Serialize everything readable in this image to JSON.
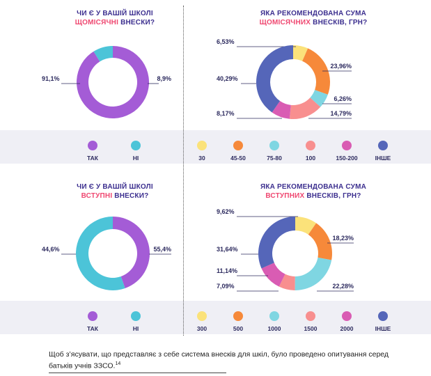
{
  "panels": {
    "monthly_exist": {
      "title_l1": "ЧИ Є У ВАШІЙ ШКОЛІ",
      "title_hl": "ЩОМІСЯЧНІ",
      "title_rest": " ВНЕСКИ?"
    },
    "monthly_amount": {
      "title_l1": "ЯКА РЕКОМЕНДОВАНА СУМА",
      "title_hl": "ЩОМІСЯЧНИХ",
      "title_rest": " ВНЕСКІВ, ГРН?"
    },
    "entry_exist": {
      "title_l1": "ЧИ Є У ВАШІЙ ШКОЛІ",
      "title_hl": "ВСТУПНІ",
      "title_rest": " ВНЕСКИ?"
    },
    "entry_amount": {
      "title_l1": "ЯКА РЕКОМЕНДОВАНА СУМА",
      "title_hl": "ВСТУПНИХ",
      "title_rest": " ВНЕСКІВ, ГРН?"
    }
  },
  "colors": {
    "purple": "#a45cd6",
    "cyan": "#4cc4d8",
    "yellow": "#fbe27a",
    "orange": "#f6893a",
    "light_cyan": "#7fd6e2",
    "pink": "#f88f8f",
    "magenta": "#d95cb3",
    "blue": "#5566b9"
  },
  "chart_data": [
    {
      "type": "pie",
      "id": "monthly_exist",
      "slices": [
        {
          "label": "ТАК",
          "value": 91.1,
          "text": "91,1%",
          "color": "#a45cd6"
        },
        {
          "label": "НІ",
          "value": 8.9,
          "text": "8,9%",
          "color": "#4cc4d8"
        }
      ]
    },
    {
      "type": "pie",
      "id": "monthly_amount",
      "slices": [
        {
          "label": "30",
          "value": 6.53,
          "text": "6,53%",
          "color": "#fbe27a"
        },
        {
          "label": "45-50",
          "value": 23.96,
          "text": "23,96%",
          "color": "#f6893a"
        },
        {
          "label": "75-80",
          "value": 6.26,
          "text": "6,26%",
          "color": "#7fd6e2"
        },
        {
          "label": "100",
          "value": 14.79,
          "text": "14,79%",
          "color": "#f88f8f"
        },
        {
          "label": "150-200",
          "value": 8.17,
          "text": "8,17%",
          "color": "#d95cb3"
        },
        {
          "label": "ІНШЕ",
          "value": 40.29,
          "text": "40,29%",
          "color": "#5566b9"
        }
      ]
    },
    {
      "type": "pie",
      "id": "entry_exist",
      "slices": [
        {
          "label": "ТАК",
          "value": 44.6,
          "text": "44,6%",
          "color": "#a45cd6"
        },
        {
          "label": "НІ",
          "value": 55.4,
          "text": "55,4%",
          "color": "#4cc4d8"
        }
      ]
    },
    {
      "type": "pie",
      "id": "entry_amount",
      "slices": [
        {
          "label": "300",
          "value": 9.62,
          "text": "9,62%",
          "color": "#fbe27a"
        },
        {
          "label": "500",
          "value": 18.23,
          "text": "18,23%",
          "color": "#f6893a"
        },
        {
          "label": "1000",
          "value": 22.28,
          "text": "22,28%",
          "color": "#7fd6e2"
        },
        {
          "label": "1500",
          "value": 7.09,
          "text": "7,09%",
          "color": "#f88f8f"
        },
        {
          "label": "2000",
          "value": 11.14,
          "text": "11,14%",
          "color": "#d95cb3"
        },
        {
          "label": "ІНШЕ",
          "value": 31.64,
          "text": "31,64%",
          "color": "#5566b9"
        }
      ]
    }
  ],
  "footer": {
    "text": "Щоб з’ясувати, що представляє з себе система внесків для шкіл, було проведено опитування серед батьків учнів ЗЗСО.",
    "footnote": "14"
  }
}
